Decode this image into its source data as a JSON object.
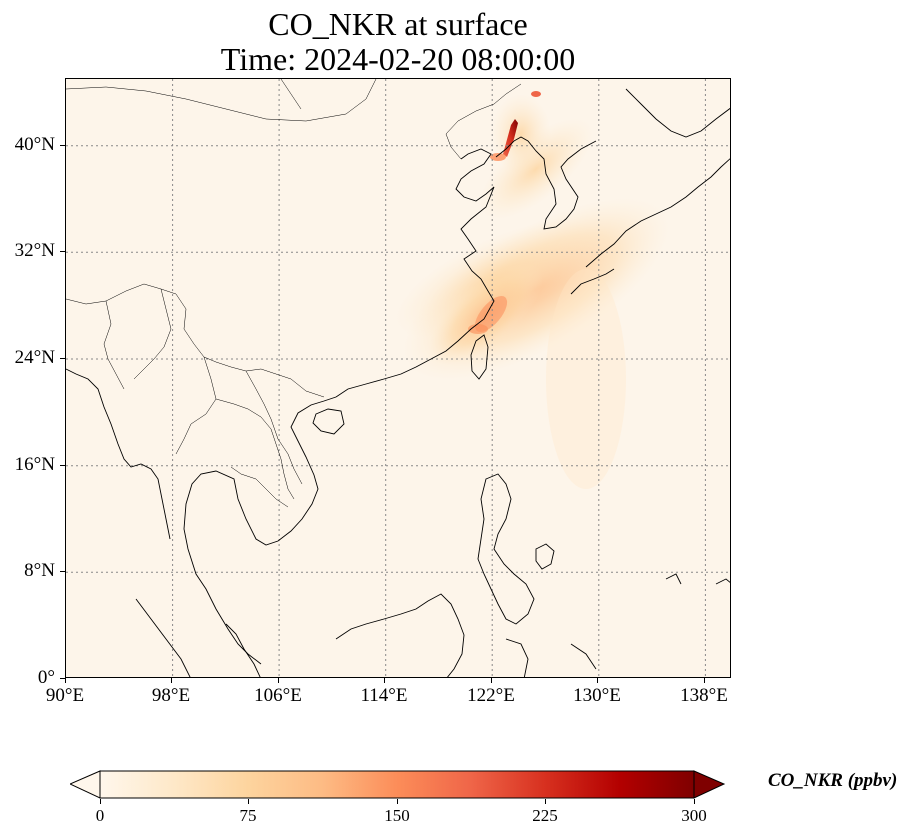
{
  "title": {
    "line1": "CO_NKR at surface",
    "line2": "Time: 2024-02-20 08:00:00"
  },
  "map": {
    "projection": "PlateCarree",
    "lon_range": [
      90,
      140
    ],
    "lat_range": [
      0,
      45
    ],
    "gridlines": "dotted gray",
    "lon_ticks": [
      "90°E",
      "98°E",
      "106°E",
      "114°E",
      "122°E",
      "130°E",
      "138°E"
    ],
    "lat_ticks": [
      "0°",
      "8°N",
      "16°N",
      "24°N",
      "32°N",
      "40°N"
    ],
    "plume_note": "highest concentrations along northeast China coast near Liaoning, moderate over East China coastal region"
  },
  "colorbar": {
    "label": "CO_NKR (ppbv)",
    "colormap": "OrRd",
    "colors": [
      "#fff7ec",
      "#fee8c8",
      "#fdd49e",
      "#fdbb84",
      "#fc8d59",
      "#ef6548",
      "#d7301f",
      "#b30000",
      "#7f0000"
    ],
    "ticks": [
      "0",
      "75",
      "150",
      "225",
      "300"
    ],
    "extend": "both"
  }
}
